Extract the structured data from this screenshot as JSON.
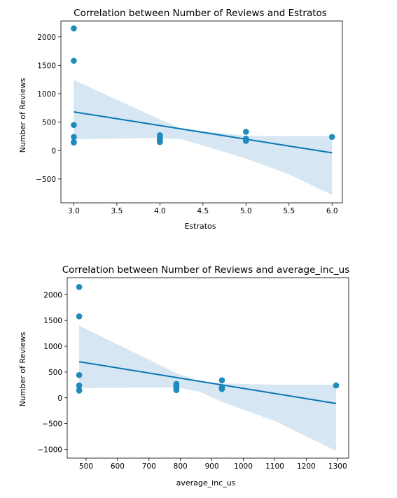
{
  "colors": {
    "point": "#1f8bbd",
    "line": "#0a76b3",
    "band": "#cfe3f1"
  },
  "chart_data": [
    {
      "type": "scatter",
      "title": "Correlation between Number of Reviews and Estratos",
      "xlabel": "Estratos",
      "ylabel": "Number of Reviews",
      "xlim": [
        2.85,
        6.12
      ],
      "ylim": [
        -920,
        2280
      ],
      "xticks": [
        3.0,
        3.5,
        4.0,
        4.5,
        5.0,
        5.5,
        6.0
      ],
      "xtick_labels": [
        "3.0",
        "3.5",
        "4.0",
        "4.5",
        "5.0",
        "5.5",
        "6.0"
      ],
      "yticks": [
        -500,
        0,
        500,
        1000,
        1500,
        2000
      ],
      "ytick_labels": [
        "−500",
        "0",
        "500",
        "1000",
        "1500",
        "2000"
      ],
      "grid": false,
      "points": {
        "x": [
          3,
          3,
          3,
          3,
          3,
          3,
          4,
          4,
          4,
          4,
          4,
          4,
          5,
          5,
          5,
          5,
          6
        ],
        "y": [
          2150,
          1580,
          450,
          240,
          150,
          140,
          270,
          240,
          210,
          190,
          170,
          150,
          330,
          210,
          190,
          170,
          240
        ]
      },
      "regression": {
        "x": [
          3.0,
          6.0
        ],
        "y": [
          680,
          -40
        ]
      },
      "confidence_band": {
        "x": [
          3.0,
          4.0,
          4.25,
          5.0,
          5.5,
          6.0
        ],
        "upper": [
          1240,
          550,
          385,
          260,
          255,
          255
        ],
        "lower": [
          200,
          220,
          200,
          -140,
          -420,
          -780
        ]
      }
    },
    {
      "type": "scatter",
      "title": "Correlation between Number of Reviews and average_inc_us",
      "xlabel": "average_inc_us",
      "ylabel": "Number of Reviews",
      "xlim": [
        440,
        1335
      ],
      "ylim": [
        -1170,
        2330
      ],
      "xticks": [
        500,
        600,
        700,
        800,
        900,
        1000,
        1100,
        1200,
        1300
      ],
      "xtick_labels": [
        "500",
        "600",
        "700",
        "800",
        "900",
        "1000",
        "1100",
        "1200",
        "1300"
      ],
      "yticks": [
        -1000,
        -500,
        0,
        500,
        1000,
        1500,
        2000
      ],
      "ytick_labels": [
        "−1000",
        "−500",
        "0",
        "500",
        "1000",
        "1500",
        "2000"
      ],
      "grid": false,
      "points": {
        "x": [
          478,
          478,
          478,
          478,
          478,
          478,
          787,
          787,
          787,
          787,
          787,
          787,
          932,
          932,
          932,
          932,
          1295
        ],
        "y": [
          2150,
          1580,
          440,
          240,
          150,
          140,
          270,
          240,
          210,
          190,
          170,
          150,
          340,
          210,
          190,
          170,
          240
        ]
      },
      "regression": {
        "x": [
          478,
          1295
        ],
        "y": [
          700,
          -110
        ]
      },
      "confidence_band": {
        "x": [
          478,
          787,
          860,
          932,
          1100,
          1295
        ],
        "upper": [
          1400,
          480,
          330,
          280,
          255,
          255
        ],
        "lower": [
          190,
          200,
          120,
          -80,
          -450,
          -1030
        ]
      }
    }
  ]
}
